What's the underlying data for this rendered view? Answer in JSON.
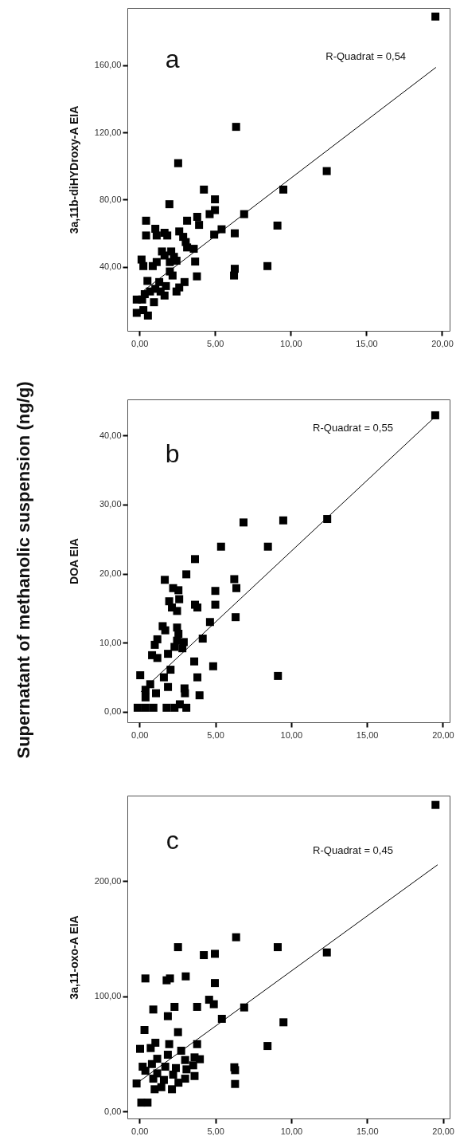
{
  "chart_data": [
    {
      "type": "scatter",
      "ylabel": "3a,11b-diHYDroxy-A EIA",
      "annotations": [
        "a",
        "R-Quadrat = 0,54"
      ],
      "marker": "square",
      "xlim": [
        -0.8,
        20.5
      ],
      "ylim": [
        2,
        194
      ],
      "xticks": [
        {
          "value": 0,
          "label": "0,00"
        },
        {
          "value": 5,
          "label": "5,00"
        },
        {
          "value": 10,
          "label": "10,00"
        },
        {
          "value": 15,
          "label": "15,00"
        },
        {
          "value": 20,
          "label": "20,00"
        }
      ],
      "yticks": [
        {
          "value": 40,
          "label": "40,00"
        },
        {
          "value": 80,
          "label": "80,00"
        },
        {
          "value": 120,
          "label": "120,00"
        },
        {
          "value": 160,
          "label": "160,00"
        }
      ],
      "series": [
        {
          "color": "#000000",
          "x": [
            19.56,
            6.39,
            2.56,
            12.38,
            9.51,
            4.26,
            1.98,
            4.99,
            4.99,
            4.64,
            6.92,
            3.82,
            3.94,
            3.15,
            0.44,
            9.12,
            5.43,
            6.3,
            4.94,
            0.44,
            1.05,
            1.14,
            1.66,
            1.84,
            2.63,
            2.89,
            3.06,
            3.15,
            3.59,
            1.49,
            2.1,
            1.66,
            2.28,
            2.45,
            2.01,
            0.14,
            0.26,
            0.88,
            1.14,
            3.68,
            8.46,
            6.3,
            6.25,
            3.8,
            2.01,
            2.19,
            0.53,
            1.31,
            2.98,
            2.63,
            1.75,
            1.05,
            0.7,
            0.35,
            1.66,
            0.96,
            0.18,
            -0.18,
            -0.18,
            0.56,
            0.26,
            2.45,
            1.4
          ],
          "values": [
            188.9,
            123.3,
            101.7,
            97,
            86,
            86,
            77.3,
            80.2,
            73.8,
            71.4,
            71.4,
            69.8,
            65,
            67.5,
            67.5,
            64.6,
            62.4,
            60,
            59.2,
            58.7,
            62.7,
            58.7,
            60.3,
            58.7,
            61.1,
            57.9,
            54.8,
            51.6,
            50.8,
            49.2,
            49.2,
            46.8,
            46,
            43.7,
            42.9,
            44.4,
            40.5,
            40.5,
            42.9,
            43.2,
            40.5,
            38.9,
            34.9,
            34.4,
            37.3,
            34.9,
            31.7,
            31,
            31,
            27.8,
            28.6,
            27,
            25.4,
            23.8,
            23,
            19,
            20.6,
            20.6,
            12.7,
            11.1,
            14.3,
            25.4,
            25.4
          ]
        },
        {
          "type": "line",
          "marker": "none",
          "color": "#000000",
          "x": [
            0.09,
            19.6
          ],
          "values": [
            24.6,
            158.7
          ]
        }
      ]
    },
    {
      "type": "scatter",
      "ylabel": "DOA EIA",
      "annotations": [
        "b",
        "R-Quadrat = 0,55",
        "Supernatant of methanolic suspension (ng/g)"
      ],
      "marker": "square",
      "xlim": [
        -0.8,
        20.45
      ],
      "ylim": [
        -1.5,
        45.2
      ],
      "xticks": [
        {
          "value": 0,
          "label": "0,00"
        },
        {
          "value": 5,
          "label": "5,00"
        },
        {
          "value": 10,
          "label": "10,00"
        },
        {
          "value": 15,
          "label": "15,00"
        },
        {
          "value": 20,
          "label": "20,00"
        }
      ],
      "yticks": [
        {
          "value": 0,
          "label": "0,00"
        },
        {
          "value": 10,
          "label": "10,00"
        },
        {
          "value": 20,
          "label": "20,00"
        },
        {
          "value": 30,
          "label": "30,00"
        },
        {
          "value": 40,
          "label": "40,00"
        }
      ],
      "series": [
        {
          "color": "#000000",
          "x": [
            19.5,
            12.38,
            9.48,
            6.86,
            5.38,
            8.47,
            3.66,
            3.09,
            1.67,
            6.25,
            6.39,
            5.0,
            2.22,
            2.57,
            1.96,
            2.62,
            3.66,
            3.82,
            5.0,
            2.14,
            2.48,
            6.34,
            4.65,
            1.53,
            1.7,
            2.48,
            2.57,
            4.17,
            1.18,
            1.01,
            2.48,
            2.92,
            2.31,
            0.83,
            1.18,
            1.88,
            2.83,
            3.61,
            4.86,
            2.05,
            0.05,
            9.13,
            1.61,
            3.82,
            1.88,
            2.97,
            0.71,
            0.4,
            1.09,
            3.96,
            3.0,
            0.4,
            -0.12,
            0.4,
            0.92,
            1.79,
            2.31,
            3.09,
            2.66
          ],
          "values": [
            42.9,
            27.9,
            27.7,
            27.4,
            23.9,
            23.9,
            22.1,
            19.9,
            19.1,
            19.2,
            17.9,
            17.5,
            17.9,
            17.6,
            16,
            16.3,
            15.5,
            15.1,
            15.5,
            15.1,
            14.6,
            13.7,
            13,
            12.4,
            11.8,
            12.2,
            11.3,
            10.6,
            10.5,
            9.7,
            10.3,
            10.1,
            9.4,
            8.2,
            7.8,
            8.4,
            9.2,
            7.3,
            6.6,
            6.1,
            5.3,
            5.2,
            5,
            5,
            3.6,
            3.4,
            4,
            3.2,
            2.7,
            2.4,
            2.7,
            2.1,
            0.6,
            0.6,
            0.6,
            0.6,
            0.6,
            0.6,
            1.1
          ]
        },
        {
          "type": "line",
          "marker": "none",
          "color": "#000000",
          "x": [
            0.09,
            19.5
          ],
          "values": [
            2.9,
            42.7
          ]
        }
      ]
    },
    {
      "type": "scatter",
      "ylabel": "3a,11-oxo-A EIA",
      "annotations": [
        "c",
        "R-Quadrat = 0,45"
      ],
      "marker": "square",
      "xlim": [
        -0.8,
        20.44
      ],
      "ylim": [
        -6.2,
        274.4
      ],
      "xticks": [
        {
          "value": 0,
          "label": "0,00"
        },
        {
          "value": 5,
          "label": "5,00"
        },
        {
          "value": 10,
          "label": "10,00"
        },
        {
          "value": 15,
          "label": "15,00"
        },
        {
          "value": 20,
          "label": "20,00"
        }
      ],
      "yticks": [
        {
          "value": 0,
          "label": "0,00"
        },
        {
          "value": 100,
          "label": "100,00"
        },
        {
          "value": 200,
          "label": "200,00"
        }
      ],
      "series": [
        {
          "color": "#000000",
          "x": [
            19.51,
            6.37,
            2.54,
            9.11,
            12.35,
            4.24,
            4.97,
            0.39,
            1.79,
            2.01,
            3.05,
            4.97,
            4.59,
            4.9,
            0.91,
            2.31,
            3.8,
            6.9,
            1.87,
            5.43,
            9.49,
            0.33,
            2.54,
            1.05,
            3.8,
            8.44,
            0.04,
            1.96,
            0.74,
            1.87,
            2.75,
            3.63,
            3.98,
            3.01,
            0.21,
            0.82,
            1.17,
            1.7,
            2.4,
            3.1,
            6.25,
            6.3,
            0.39,
            1.17,
            3.54,
            2.22,
            3.63,
            3.01,
            0.91,
            1.61,
            2.57,
            -0.19,
            6.3,
            1.0,
            1.44,
            2.14,
            0.12,
            0.53
          ],
          "values": [
            266.3,
            151.3,
            142.7,
            142.7,
            138.1,
            135.8,
            136.9,
            115.5,
            113.9,
            115.5,
            117.3,
            111.5,
            97,
            93.1,
            88.5,
            90.8,
            90.8,
            90.3,
            82.7,
            80.4,
            77.4,
            70.7,
            68.8,
            59.6,
            58.4,
            56.8,
            54.3,
            58.4,
            55,
            49.2,
            52.7,
            46.9,
            45.3,
            44.6,
            38.8,
            41.1,
            45.7,
            38.8,
            37.6,
            36.5,
            38.3,
            35.8,
            35.3,
            33,
            40,
            31.9,
            30.7,
            28.4,
            28.4,
            27.3,
            24.9,
            24.2,
            23.8,
            19.2,
            21,
            19.2,
            7.6,
            7.6
          ]
        },
        {
          "type": "line",
          "marker": "none",
          "color": "#000000",
          "x": [
            0,
            19.65
          ],
          "values": [
            26.1,
            214.3
          ]
        }
      ]
    }
  ]
}
